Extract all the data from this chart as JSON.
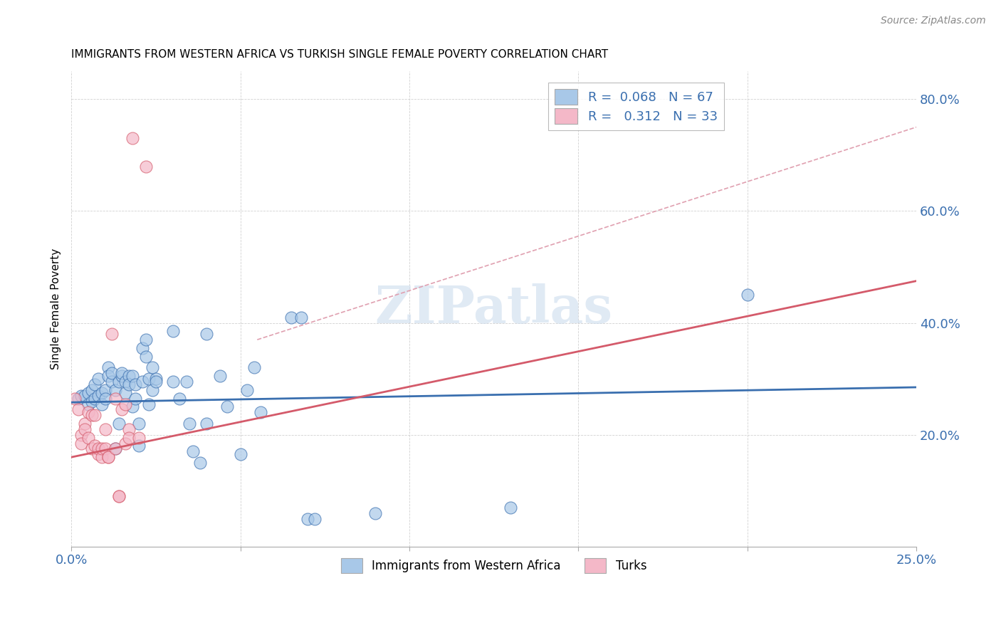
{
  "title": "IMMIGRANTS FROM WESTERN AFRICA VS TURKISH SINGLE FEMALE POVERTY CORRELATION CHART",
  "source": "Source: ZipAtlas.com",
  "ylabel": "Single Female Poverty",
  "xlim": [
    0.0,
    0.25
  ],
  "ylim": [
    0.0,
    0.85
  ],
  "color_blue": "#a8c8e8",
  "color_pink": "#f4b8c8",
  "trendline_blue_color": "#3a6faf",
  "trendline_pink_color": "#d45a6a",
  "trendline_dashed_color": "#e0a0b0",
  "background_color": "#ffffff",
  "watermark": "ZIPatlas",
  "legend_text_color": "#3a6faf",
  "blue_points": [
    [
      0.002,
      0.265
    ],
    [
      0.003,
      0.27
    ],
    [
      0.004,
      0.27
    ],
    [
      0.005,
      0.275
    ],
    [
      0.005,
      0.255
    ],
    [
      0.006,
      0.26
    ],
    [
      0.006,
      0.28
    ],
    [
      0.007,
      0.29
    ],
    [
      0.007,
      0.265
    ],
    [
      0.008,
      0.3
    ],
    [
      0.008,
      0.27
    ],
    [
      0.009,
      0.275
    ],
    [
      0.009,
      0.255
    ],
    [
      0.01,
      0.28
    ],
    [
      0.01,
      0.265
    ],
    [
      0.011,
      0.32
    ],
    [
      0.011,
      0.305
    ],
    [
      0.012,
      0.295
    ],
    [
      0.012,
      0.31
    ],
    [
      0.013,
      0.28
    ],
    [
      0.013,
      0.175
    ],
    [
      0.014,
      0.22
    ],
    [
      0.014,
      0.295
    ],
    [
      0.015,
      0.305
    ],
    [
      0.015,
      0.31
    ],
    [
      0.016,
      0.295
    ],
    [
      0.016,
      0.275
    ],
    [
      0.017,
      0.305
    ],
    [
      0.017,
      0.29
    ],
    [
      0.018,
      0.305
    ],
    [
      0.018,
      0.25
    ],
    [
      0.019,
      0.265
    ],
    [
      0.019,
      0.29
    ],
    [
      0.02,
      0.22
    ],
    [
      0.02,
      0.18
    ],
    [
      0.021,
      0.295
    ],
    [
      0.021,
      0.355
    ],
    [
      0.022,
      0.37
    ],
    [
      0.022,
      0.34
    ],
    [
      0.023,
      0.3
    ],
    [
      0.023,
      0.255
    ],
    [
      0.024,
      0.32
    ],
    [
      0.024,
      0.28
    ],
    [
      0.025,
      0.3
    ],
    [
      0.025,
      0.295
    ],
    [
      0.03,
      0.295
    ],
    [
      0.03,
      0.385
    ],
    [
      0.032,
      0.265
    ],
    [
      0.034,
      0.295
    ],
    [
      0.035,
      0.22
    ],
    [
      0.036,
      0.17
    ],
    [
      0.038,
      0.15
    ],
    [
      0.04,
      0.38
    ],
    [
      0.04,
      0.22
    ],
    [
      0.044,
      0.305
    ],
    [
      0.046,
      0.25
    ],
    [
      0.05,
      0.165
    ],
    [
      0.052,
      0.28
    ],
    [
      0.054,
      0.32
    ],
    [
      0.056,
      0.24
    ],
    [
      0.065,
      0.41
    ],
    [
      0.068,
      0.41
    ],
    [
      0.07,
      0.05
    ],
    [
      0.072,
      0.05
    ],
    [
      0.09,
      0.06
    ],
    [
      0.13,
      0.07
    ],
    [
      0.2,
      0.45
    ]
  ],
  "pink_points": [
    [
      0.001,
      0.265
    ],
    [
      0.002,
      0.245
    ],
    [
      0.003,
      0.2
    ],
    [
      0.003,
      0.185
    ],
    [
      0.004,
      0.22
    ],
    [
      0.004,
      0.21
    ],
    [
      0.005,
      0.24
    ],
    [
      0.005,
      0.195
    ],
    [
      0.006,
      0.235
    ],
    [
      0.006,
      0.175
    ],
    [
      0.007,
      0.235
    ],
    [
      0.007,
      0.18
    ],
    [
      0.008,
      0.165
    ],
    [
      0.008,
      0.175
    ],
    [
      0.009,
      0.16
    ],
    [
      0.009,
      0.175
    ],
    [
      0.01,
      0.21
    ],
    [
      0.01,
      0.175
    ],
    [
      0.011,
      0.16
    ],
    [
      0.011,
      0.16
    ],
    [
      0.012,
      0.38
    ],
    [
      0.013,
      0.265
    ],
    [
      0.013,
      0.175
    ],
    [
      0.014,
      0.09
    ],
    [
      0.014,
      0.09
    ],
    [
      0.015,
      0.245
    ],
    [
      0.016,
      0.255
    ],
    [
      0.016,
      0.185
    ],
    [
      0.017,
      0.21
    ],
    [
      0.017,
      0.195
    ],
    [
      0.018,
      0.73
    ],
    [
      0.02,
      0.195
    ],
    [
      0.022,
      0.68
    ]
  ],
  "blue_trendline": [
    [
      0.0,
      0.258
    ],
    [
      0.25,
      0.285
    ]
  ],
  "pink_trendline": [
    [
      0.0,
      0.16
    ],
    [
      0.25,
      0.475
    ]
  ],
  "dashed_trendline": [
    [
      0.055,
      0.37
    ],
    [
      0.25,
      0.75
    ]
  ],
  "xtick_positions": [
    0.0,
    0.05,
    0.1,
    0.15,
    0.2,
    0.25
  ],
  "ytick_positions": [
    0.0,
    0.2,
    0.4,
    0.6,
    0.8
  ],
  "ytick_labels": [
    "",
    "20.0%",
    "40.0%",
    "60.0%",
    "80.0%"
  ]
}
